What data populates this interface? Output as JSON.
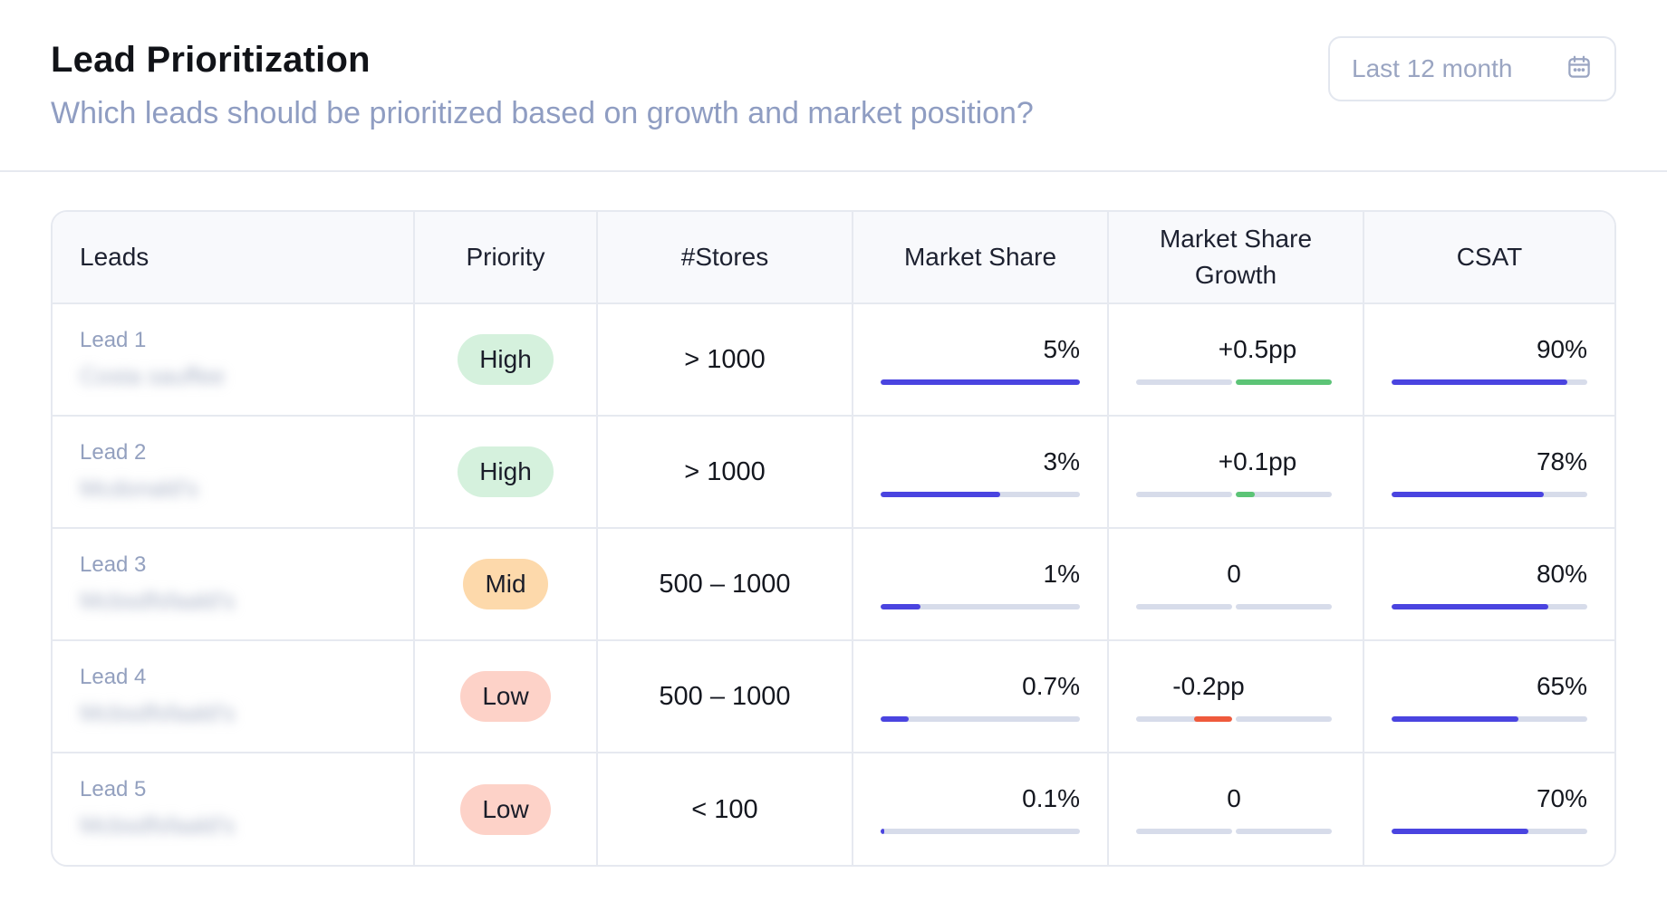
{
  "header": {
    "title": "Lead Prioritization",
    "subtitle": "Which leads should be prioritized based on growth and market position?",
    "date_range": "Last 12 month",
    "calendar_icon": "calendar-icon"
  },
  "table": {
    "columns": [
      "Leads",
      "Priority",
      "#Stores",
      "Market Share",
      "Market Share Growth",
      "CSAT"
    ],
    "rows": [
      {
        "lead": "Lead 1",
        "name": "Costa sauffee",
        "priority": "High",
        "priority_color": "#d5f1dd",
        "stores": "> 1000",
        "market_share": "5%",
        "market_share_fraction": 1.0,
        "growth": "+0.5pp",
        "growth_pp": 0.5,
        "csat": "90%",
        "csat_fraction": 0.9
      },
      {
        "lead": "Lead 2",
        "name": "Mcdonald's",
        "priority": "High",
        "priority_color": "#d5f1dd",
        "stores": "> 1000",
        "market_share": "3%",
        "market_share_fraction": 0.6,
        "growth": "+0.1pp",
        "growth_pp": 0.1,
        "csat": "78%",
        "csat_fraction": 0.78
      },
      {
        "lead": "Lead 3",
        "name": "Mcbsdfsfaald's",
        "priority": "Mid",
        "priority_color": "#fdd9ab",
        "stores": "500 – 1000",
        "market_share": "1%",
        "market_share_fraction": 0.2,
        "growth": "0",
        "growth_pp": 0,
        "csat": "80%",
        "csat_fraction": 0.8
      },
      {
        "lead": "Lead 4",
        "name": "Mcbsdfsfaald's",
        "priority": "Low",
        "priority_color": "#fdd2c8",
        "stores": "500 – 1000",
        "market_share": "0.7%",
        "market_share_fraction": 0.14,
        "growth": "-0.2pp",
        "growth_pp": -0.2,
        "csat": "65%",
        "csat_fraction": 0.65
      },
      {
        "lead": "Lead 5",
        "name": "Mcbsdfsfaald's",
        "priority": "Low",
        "priority_color": "#fdd2c8",
        "stores": "< 100",
        "market_share": "0.1%",
        "market_share_fraction": 0.02,
        "growth": "0",
        "growth_pp": 0,
        "csat": "70%",
        "csat_fraction": 0.7
      }
    ]
  }
}
